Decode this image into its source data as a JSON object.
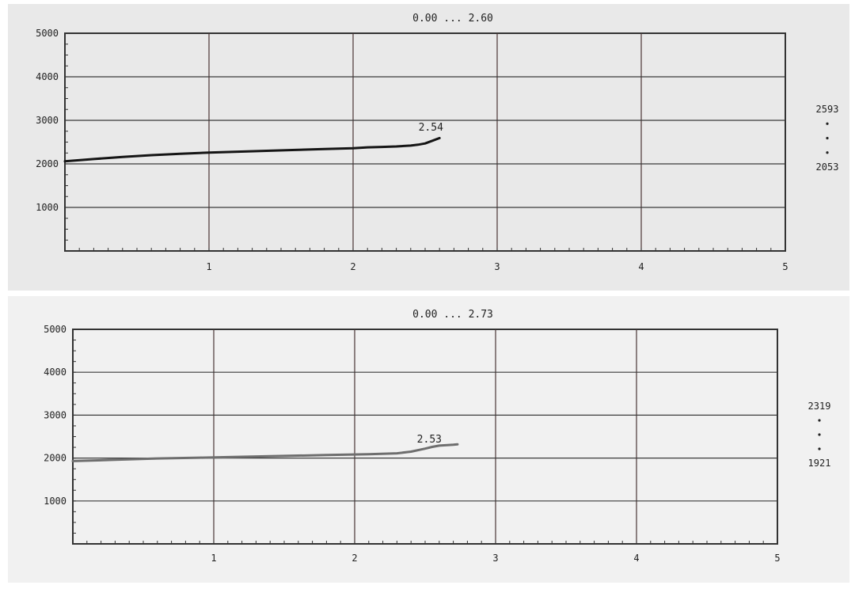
{
  "chart_data": [
    {
      "type": "line",
      "title": "0.00 ... 2.60",
      "xlim": [
        0,
        5
      ],
      "ylim": [
        0,
        5000
      ],
      "x_ticks": [
        "1",
        "2",
        "3",
        "4",
        "5"
      ],
      "y_ticks": [
        "1000",
        "2000",
        "3000",
        "4000",
        "5000"
      ],
      "grid": true,
      "annotation": {
        "text": "2.54",
        "x": 2.54
      },
      "range_readout": {
        "max": "2593",
        "min": "2053"
      },
      "series": [
        {
          "color": "#151515",
          "x": [
            0,
            0.2,
            0.4,
            0.6,
            0.8,
            1.0,
            1.2,
            1.4,
            1.6,
            1.8,
            2.0,
            2.1,
            2.2,
            2.3,
            2.4,
            2.45,
            2.5,
            2.55,
            2.6
          ],
          "y": [
            2060,
            2110,
            2160,
            2200,
            2230,
            2260,
            2280,
            2300,
            2320,
            2340,
            2360,
            2380,
            2390,
            2400,
            2420,
            2440,
            2470,
            2530,
            2593
          ]
        }
      ]
    },
    {
      "type": "line",
      "title": "0.00 ... 2.73",
      "xlim": [
        0,
        5
      ],
      "ylim": [
        0,
        5000
      ],
      "x_ticks": [
        "1",
        "2",
        "3",
        "4",
        "5"
      ],
      "y_ticks": [
        "1000",
        "2000",
        "3000",
        "4000",
        "5000"
      ],
      "grid": true,
      "annotation": {
        "text": "2.53",
        "x": 2.53
      },
      "range_readout": {
        "max": "2319",
        "min": "1921"
      },
      "series": [
        {
          "color": "#6e6e6e",
          "x": [
            0,
            0.3,
            0.6,
            0.9,
            1.2,
            1.5,
            1.8,
            2.1,
            2.3,
            2.4,
            2.5,
            2.55,
            2.6,
            2.7,
            2.73
          ],
          "y": [
            1930,
            1960,
            1990,
            2010,
            2030,
            2050,
            2070,
            2090,
            2110,
            2150,
            2220,
            2260,
            2290,
            2310,
            2319
          ]
        }
      ]
    }
  ]
}
